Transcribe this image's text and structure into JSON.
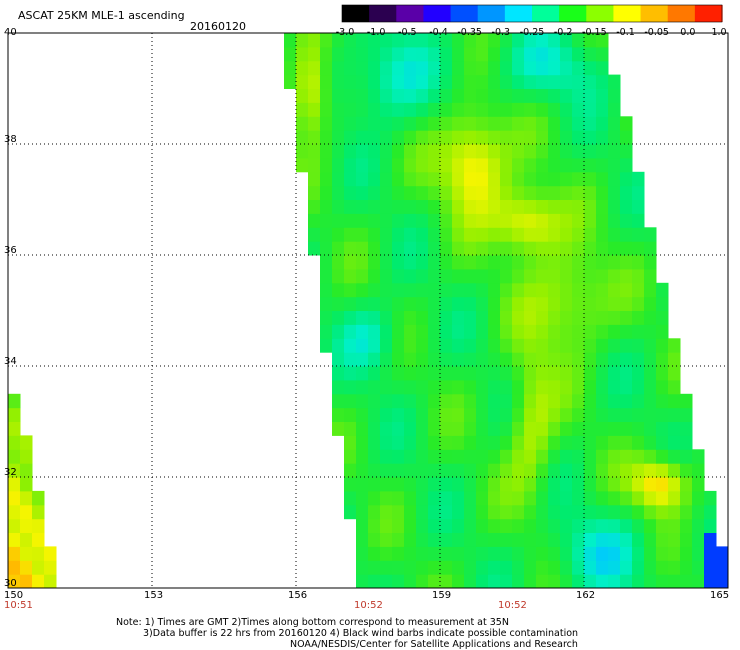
{
  "title": "ASCAT 25KM MLE-1 ascending",
  "date": "20160120",
  "colorbar": {
    "ticks": [
      "-3.0",
      "-1.0",
      "-0.5",
      "-0.4",
      "-0.35",
      "-0.3",
      "-0.25",
      "-0.2",
      "-0.15",
      "-0.1",
      "-0.05",
      "0.0",
      "1.0"
    ],
    "colors": [
      "#000000",
      "#2b0050",
      "#5a00a8",
      "#2200ff",
      "#0050ff",
      "#0096ff",
      "#00e6ff",
      "#00ff9a",
      "#19ff19",
      "#8cff00",
      "#ffff00",
      "#ffbe00",
      "#ff7800",
      "#ff2000"
    ]
  },
  "axes": {
    "x_ticks": [
      "150",
      "153",
      "156",
      "159",
      "162",
      "165"
    ],
    "y_ticks": [
      "40",
      "38",
      "36",
      "34",
      "32",
      "30"
    ],
    "x_range": [
      150,
      165
    ],
    "y_range": [
      30,
      40
    ]
  },
  "times": [
    {
      "label": "10:51",
      "lon": 150
    },
    {
      "label": "10:52",
      "lon": 157.5
    },
    {
      "label": "10:52",
      "lon": 160.5
    }
  ],
  "notes": {
    "line1": "Note: 1) Times are GMT 2)Times along bottom correspond to measurement at 35N",
    "line2": "3)Data buffer is 22 hrs from 20160120 4) Black wind barbs indicate possible contamination",
    "line3": "NOAA/NESDIS/Center for Satellite Applications and Research"
  }
}
